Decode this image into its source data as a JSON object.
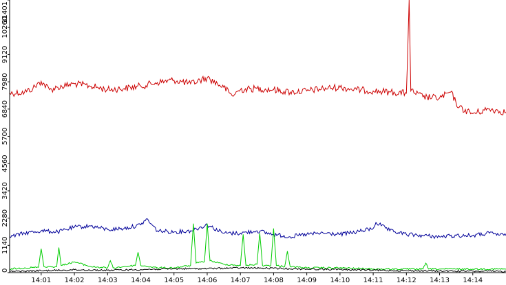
{
  "chart_data": {
    "type": "line",
    "title": "",
    "xlabel": "",
    "ylabel": "",
    "ylim": [
      0,
      11401
    ],
    "y_ticks": [
      0,
      1140,
      2280,
      3420,
      4560,
      5700,
      6840,
      7980,
      9120,
      10260,
      11401
    ],
    "y_tick_labels": [
      "0",
      "1140",
      "2280",
      "3420",
      "4560",
      "5700",
      "6840",
      "7980",
      "9120",
      "10260",
      "11401"
    ],
    "x_range": [
      "14:00:03",
      "14:15:00"
    ],
    "x_ticks": [
      "14:01",
      "14:02",
      "14:03",
      "14:04",
      "14:05",
      "14:06",
      "14:07",
      "14:08",
      "14:09",
      "14:10",
      "14:11",
      "14:12",
      "14:13",
      "14:14"
    ],
    "grid": false,
    "legend": "none",
    "series": [
      {
        "color": "#cc0000",
        "points": [
          [
            "14:00:03",
            7500
          ],
          [
            "14:00:30",
            7550
          ],
          [
            "14:00:45",
            7700
          ],
          [
            "14:01:00",
            8000
          ],
          [
            "14:01:15",
            7650
          ],
          [
            "14:01:30",
            7750
          ],
          [
            "14:02:00",
            7900
          ],
          [
            "14:02:30",
            7800
          ],
          [
            "14:03:00",
            7650
          ],
          [
            "14:03:30",
            7700
          ],
          [
            "14:04:00",
            7800
          ],
          [
            "14:04:30",
            7950
          ],
          [
            "14:05:00",
            8050
          ],
          [
            "14:05:30",
            7900
          ],
          [
            "14:06:00",
            8150
          ],
          [
            "14:06:30",
            7750
          ],
          [
            "14:06:45",
            7400
          ],
          [
            "14:07:00",
            7650
          ],
          [
            "14:07:30",
            7700
          ],
          [
            "14:08:00",
            7650
          ],
          [
            "14:08:30",
            7550
          ],
          [
            "14:09:00",
            7600
          ],
          [
            "14:09:30",
            7700
          ],
          [
            "14:10:00",
            7750
          ],
          [
            "14:10:30",
            7650
          ],
          [
            "14:11:00",
            7600
          ],
          [
            "14:11:30",
            7550
          ],
          [
            "14:12:00",
            7500
          ],
          [
            "14:12:05",
            11401
          ],
          [
            "14:12:08",
            7600
          ],
          [
            "14:12:30",
            7350
          ],
          [
            "14:13:00",
            7300
          ],
          [
            "14:13:20",
            7550
          ],
          [
            "14:13:35",
            6900
          ],
          [
            "14:14:00",
            6650
          ],
          [
            "14:14:30",
            6850
          ],
          [
            "14:15:00",
            6700
          ]
        ]
      },
      {
        "color": "#000099",
        "points": [
          [
            "14:00:03",
            1500
          ],
          [
            "14:00:30",
            1650
          ],
          [
            "14:01:00",
            1750
          ],
          [
            "14:01:30",
            1700
          ],
          [
            "14:02:00",
            1900
          ],
          [
            "14:02:30",
            1950
          ],
          [
            "14:03:00",
            1800
          ],
          [
            "14:03:30",
            1850
          ],
          [
            "14:04:00",
            2000
          ],
          [
            "14:04:10",
            2250
          ],
          [
            "14:04:30",
            1750
          ],
          [
            "14:05:00",
            1700
          ],
          [
            "14:05:30",
            1750
          ],
          [
            "14:06:00",
            2000
          ],
          [
            "14:06:30",
            1650
          ],
          [
            "14:07:00",
            1650
          ],
          [
            "14:07:30",
            1750
          ],
          [
            "14:08:00",
            1600
          ],
          [
            "14:08:30",
            1500
          ],
          [
            "14:09:00",
            1600
          ],
          [
            "14:09:30",
            1650
          ],
          [
            "14:10:00",
            1600
          ],
          [
            "14:10:30",
            1700
          ],
          [
            "14:11:00",
            1850
          ],
          [
            "14:11:05",
            2100
          ],
          [
            "14:11:30",
            1750
          ],
          [
            "14:12:00",
            1600
          ],
          [
            "14:12:30",
            1550
          ],
          [
            "14:13:00",
            1500
          ],
          [
            "14:13:30",
            1550
          ],
          [
            "14:14:00",
            1550
          ],
          [
            "14:14:30",
            1650
          ],
          [
            "14:15:00",
            1550
          ]
        ]
      },
      {
        "color": "#00cc00",
        "points": [
          [
            "14:00:03",
            150
          ],
          [
            "14:00:30",
            200
          ],
          [
            "14:00:55",
            220
          ],
          [
            "14:01:00",
            1000
          ],
          [
            "14:01:05",
            250
          ],
          [
            "14:01:28",
            250
          ],
          [
            "14:01:32",
            1050
          ],
          [
            "14:01:36",
            300
          ],
          [
            "14:02:00",
            450
          ],
          [
            "14:02:30",
            250
          ],
          [
            "14:03:00",
            200
          ],
          [
            "14:03:05",
            500
          ],
          [
            "14:03:10",
            200
          ],
          [
            "14:03:30",
            250
          ],
          [
            "14:03:50",
            300
          ],
          [
            "14:03:55",
            850
          ],
          [
            "14:04:00",
            300
          ],
          [
            "14:04:30",
            200
          ],
          [
            "14:05:00",
            200
          ],
          [
            "14:05:30",
            300
          ],
          [
            "14:05:35",
            2050
          ],
          [
            "14:05:40",
            400
          ],
          [
            "14:05:55",
            450
          ],
          [
            "14:06:00",
            2050
          ],
          [
            "14:06:05",
            500
          ],
          [
            "14:06:30",
            350
          ],
          [
            "14:07:00",
            300
          ],
          [
            "14:07:05",
            1600
          ],
          [
            "14:07:10",
            300
          ],
          [
            "14:07:30",
            350
          ],
          [
            "14:07:35",
            1650
          ],
          [
            "14:07:40",
            300
          ],
          [
            "14:07:55",
            300
          ],
          [
            "14:08:00",
            1850
          ],
          [
            "14:08:05",
            300
          ],
          [
            "14:08:20",
            250
          ],
          [
            "14:08:25",
            900
          ],
          [
            "14:08:30",
            250
          ],
          [
            "14:09:00",
            200
          ],
          [
            "14:10:00",
            200
          ],
          [
            "14:11:00",
            150
          ],
          [
            "14:12:00",
            150
          ],
          [
            "14:12:30",
            150
          ],
          [
            "14:12:35",
            400
          ],
          [
            "14:12:40",
            150
          ],
          [
            "14:13:00",
            150
          ],
          [
            "14:14:00",
            150
          ],
          [
            "14:15:00",
            150
          ]
        ]
      },
      {
        "color": "#000000",
        "points": [
          [
            "14:00:03",
            50
          ],
          [
            "14:01:00",
            80
          ],
          [
            "14:02:00",
            120
          ],
          [
            "14:03:00",
            100
          ],
          [
            "14:04:00",
            130
          ],
          [
            "14:05:00",
            160
          ],
          [
            "14:06:00",
            170
          ],
          [
            "14:07:00",
            200
          ],
          [
            "14:08:00",
            180
          ],
          [
            "14:09:00",
            150
          ],
          [
            "14:10:00",
            130
          ],
          [
            "14:11:00",
            100
          ],
          [
            "14:12:00",
            80
          ],
          [
            "14:13:00",
            70
          ],
          [
            "14:14:00",
            60
          ],
          [
            "14:15:00",
            50
          ]
        ]
      }
    ]
  }
}
